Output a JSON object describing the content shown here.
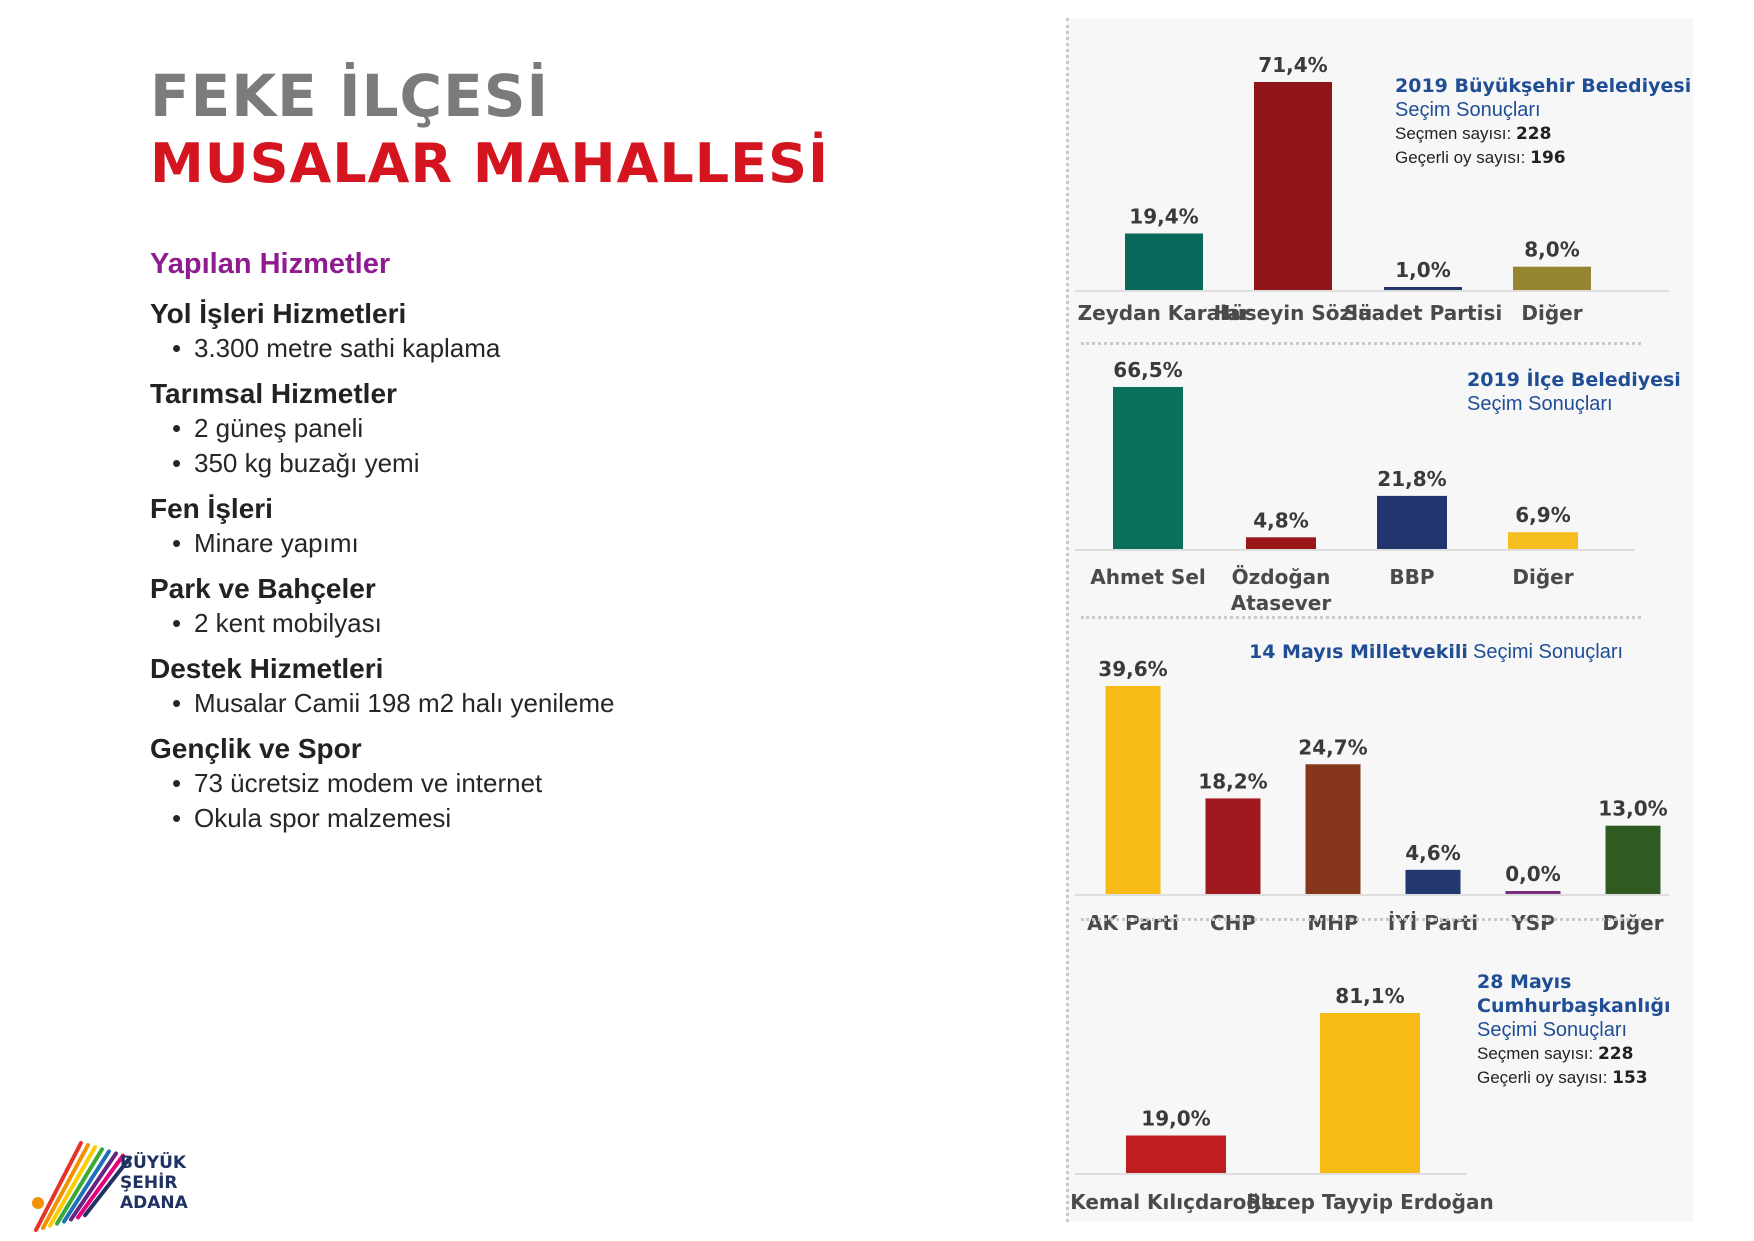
{
  "header": {
    "title_line1": "FEKE İLÇESİ",
    "title_line2": "MUSALAR MAHALLESİ"
  },
  "services": {
    "title": "Yapılan Hizmetler",
    "categories": [
      {
        "name": "Yol İşleri Hizmetleri",
        "items": [
          "3.300 metre sathi kaplama"
        ]
      },
      {
        "name": "Tarımsal Hizmetler",
        "items": [
          "2 güneş paneli",
          "350 kg buzağı yemi"
        ]
      },
      {
        "name": "Fen İşleri",
        "items": [
          "Minare yapımı"
        ]
      },
      {
        "name": "Park ve Bahçeler",
        "items": [
          "2 kent mobilyası"
        ]
      },
      {
        "name": "Destek Hizmetleri",
        "items": [
          "Musalar Camii 198 m2 halı yenileme"
        ]
      },
      {
        "name": "Gençlik ve Spor",
        "items": [
          "73 ücretsiz modem ve internet",
          "Okula spor malzemesi"
        ]
      }
    ]
  },
  "logo": {
    "lines": [
      "BÜYÜK",
      "ŞEHİR",
      "ADANA"
    ],
    "stripe_colors": [
      "#e6332a",
      "#f39200",
      "#ffcc00",
      "#3aaa35",
      "#1d71b8",
      "#662483",
      "#e5007d",
      "#1f3263"
    ]
  },
  "colors": {
    "title_gray": "#7b7b7b",
    "title_red": "#d4141f",
    "services_purple": "#8e1b8f",
    "legend_blue": "#1f4e95"
  },
  "chart_data": [
    {
      "type": "bar",
      "title": "2019 Büyükşehir Belediyesi",
      "subtitle": "Seçim Sonuçları",
      "info": [
        {
          "label": "Seçmen sayısı:",
          "value": "228"
        },
        {
          "label": "Geçerli oy sayısı:",
          "value": "196"
        }
      ],
      "categories": [
        "Zeydan Karalar",
        "Hüseyin Sözlü",
        "Saadet Partisi",
        "Diğer"
      ],
      "values": [
        19.4,
        71.4,
        1.0,
        8.0
      ],
      "value_labels": [
        "19,4%",
        "71,4%",
        "1,0%",
        "8,0%"
      ],
      "colors": [
        "#08695a",
        "#8f1519",
        "#24356c",
        "#958530"
      ],
      "unit": "%"
    },
    {
      "type": "bar",
      "title": "2019 İlçe Belediyesi",
      "subtitle": "Seçim Sonuçları",
      "categories": [
        "Ahmet Sel",
        "Özdoğan Atasever",
        "BBP",
        "Diğer"
      ],
      "values": [
        66.5,
        4.8,
        21.8,
        6.9
      ],
      "value_labels": [
        "66,5%",
        "4,8%",
        "21,8%",
        "6,9%"
      ],
      "colors": [
        "#08705d",
        "#991719",
        "#22356f",
        "#f5bd1e"
      ],
      "unit": "%"
    },
    {
      "type": "bar",
      "title": "14 Mayıs Milletvekili",
      "subtitle": "Seçimi Sonuçları",
      "categories": [
        "AK Parti",
        "CHP",
        "MHP",
        "İYİ Parti",
        "YSP",
        "Diğer"
      ],
      "values": [
        39.6,
        18.2,
        24.7,
        4.6,
        0.0,
        13.0
      ],
      "value_labels": [
        "39,6%",
        "18,2%",
        "24,7%",
        "4,6%",
        "0,0%",
        "13,0%"
      ],
      "colors": [
        "#f6bb14",
        "#a0191f",
        "#86361b",
        "#22386f",
        "#7a2d7a",
        "#2f5a22"
      ],
      "unit": "%"
    },
    {
      "type": "bar",
      "title": "28 Mayıs Cumhurbaşkanlığı",
      "subtitle": "Seçimi Sonuçları",
      "info": [
        {
          "label": "Seçmen sayısı:",
          "value": "228"
        },
        {
          "label": "Geçerli oy sayısı:",
          "value": "153"
        }
      ],
      "categories": [
        "Kemal Kılıçdaroğlu",
        "Recep Tayyip Erdoğan"
      ],
      "values": [
        19.0,
        81.1
      ],
      "value_labels": [
        "19,0%",
        "81,1%"
      ],
      "colors": [
        "#c01d20",
        "#f6bb14"
      ],
      "unit": "%"
    }
  ]
}
